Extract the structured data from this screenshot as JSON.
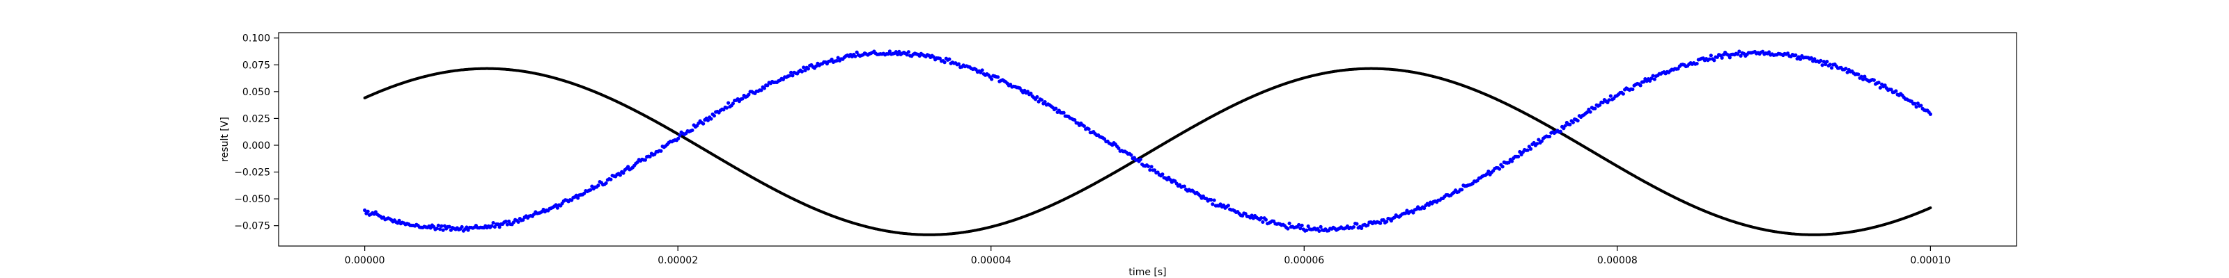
{
  "chart_data": {
    "type": "scatter",
    "title": "",
    "xlabel": "time [s]",
    "ylabel": "result [V]",
    "xlim": [
      -5.5e-06,
      0.0001055
    ],
    "ylim": [
      -0.094,
      0.105
    ],
    "xticks": [
      0.0,
      2e-05,
      4e-05,
      6e-05,
      8e-05,
      0.0001
    ],
    "xtick_labels": [
      "0.00000",
      "0.00002",
      "0.00004",
      "0.00006",
      "0.00008",
      "0.00010"
    ],
    "yticks": [
      -0.075,
      -0.05,
      -0.025,
      0.0,
      0.025,
      0.05,
      0.075,
      0.1
    ],
    "ytick_labels": [
      "−0.075",
      "−0.050",
      "−0.025",
      "0.000",
      "0.025",
      "0.050",
      "0.075",
      "0.100"
    ],
    "grid": false,
    "legend": null,
    "series": [
      {
        "name": "black series",
        "color": "#000000",
        "point_count": 2000,
        "model": "sine",
        "offset": -0.006,
        "amplitude": 0.0775,
        "period": 5.65e-05,
        "crest_time": 7.8e-06,
        "noise": 0.0,
        "x": [
          0.0,
          8e-06,
          2.2e-05,
          3.6e-05,
          5e-05,
          6.4e-05,
          7.8e-05,
          9.2e-05,
          0.0001
        ],
        "y": [
          0.038,
          0.071,
          0.0,
          -0.083,
          -0.012,
          0.071,
          0.013,
          -0.083,
          -0.052
        ]
      },
      {
        "name": "blue series",
        "color": "#0000ff",
        "point_count": 1000,
        "model": "sine",
        "offset": 0.004,
        "amplitude": 0.082,
        "period": 5.55e-05,
        "crest_time": 3.35e-05,
        "noise": 0.0035,
        "x": [
          0.0,
          6e-06,
          2e-05,
          3.4e-05,
          5e-05,
          6.2e-05,
          7.6e-05,
          9e-05,
          0.0001
        ],
        "y": [
          -0.062,
          -0.076,
          0.012,
          0.086,
          -0.012,
          -0.078,
          0.011,
          0.086,
          0.033
        ]
      }
    ]
  }
}
